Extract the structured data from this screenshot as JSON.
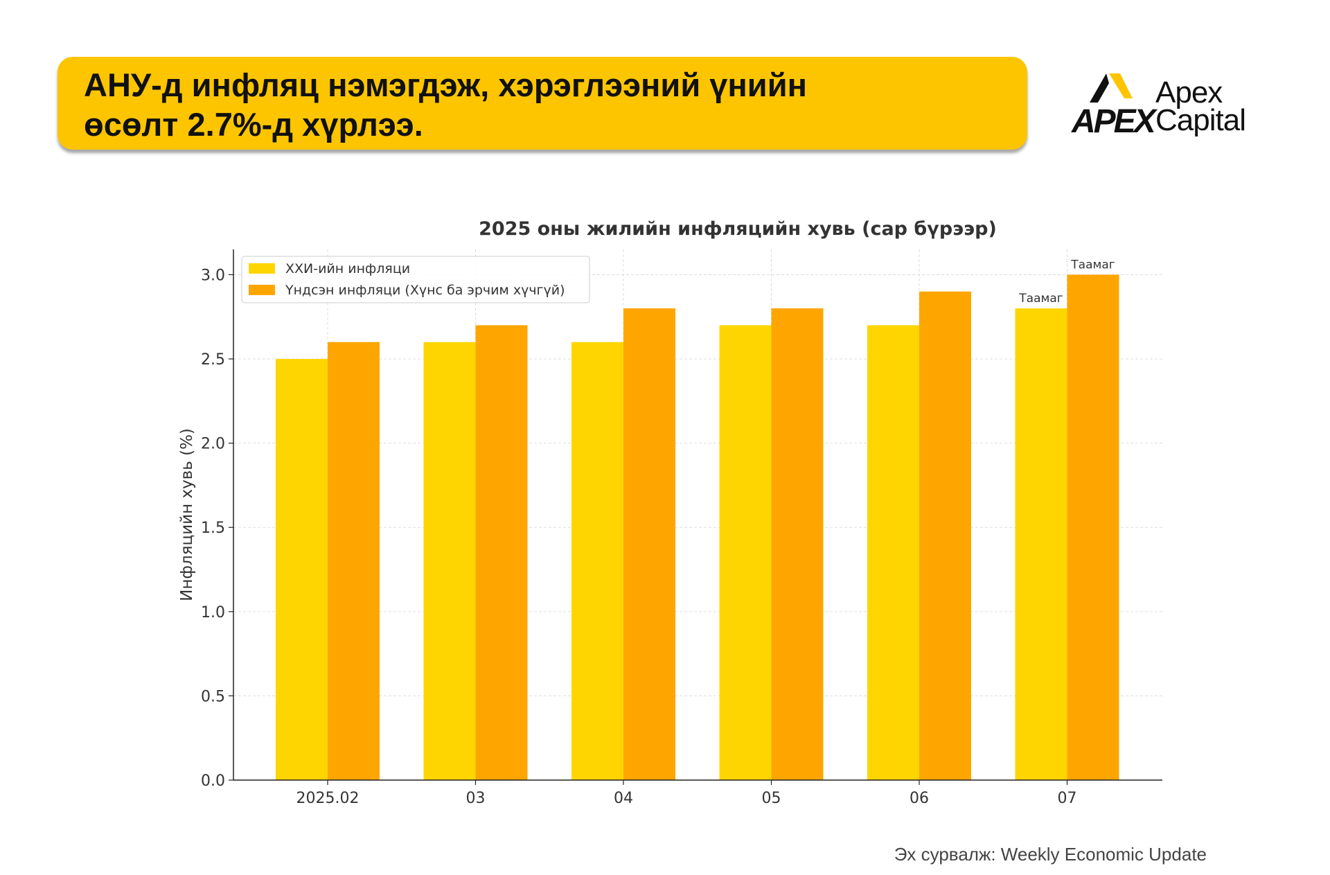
{
  "headline": {
    "line1": "АНУ-д инфляц нэмэгдэж, хэрэглээний үнийн",
    "line2": "өсөлт 2.7%-д хүрлээ."
  },
  "logo": {
    "mark": "APEX",
    "name_line1": "Apex",
    "name_line2": "Capital"
  },
  "source": "Эх сурвалж: Weekly Economic Update",
  "colors": {
    "headline_bg": "#FDC500",
    "series1": "#FFD500",
    "series2": "#FFA500"
  },
  "chart_data": {
    "type": "bar",
    "title": "2025 оны жилийн инфляцийн хувь (сар бүрээр)",
    "xlabel": "",
    "ylabel": "Инфляцийн хувь (%)",
    "categories": [
      "2025.02",
      "03",
      "04",
      "05",
      "06",
      "07"
    ],
    "series": [
      {
        "name": "ХХИ-ийн инфляци",
        "values": [
          2.5,
          2.6,
          2.6,
          2.7,
          2.7,
          2.8
        ],
        "color": "#FFD500"
      },
      {
        "name": "Үндсэн инфляци (Хүнс ба эрчим хүчгүй)",
        "values": [
          2.6,
          2.7,
          2.8,
          2.8,
          2.9,
          3.0
        ],
        "color": "#FFA500"
      }
    ],
    "annotations": [
      {
        "series": 0,
        "category": "07",
        "text": "Таамаг"
      },
      {
        "series": 1,
        "category": "07",
        "text": "Таамаг"
      }
    ],
    "ylim": [
      0,
      3.15
    ],
    "yticks": [
      0.0,
      0.5,
      1.0,
      1.5,
      2.0,
      2.5,
      3.0
    ],
    "ytick_labels": [
      "0.0",
      "0.5",
      "1.0",
      "1.5",
      "2.0",
      "2.5",
      "3.0"
    ],
    "grid": true,
    "legend_position": "top-left"
  }
}
